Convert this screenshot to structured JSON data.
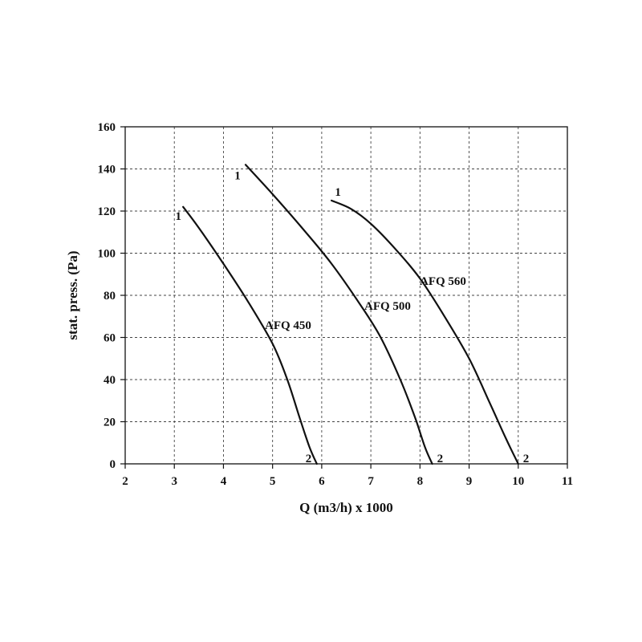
{
  "chart_data": {
    "type": "line",
    "title": "",
    "xlabel": "Q (m3/h) x 1000",
    "ylabel": "stat. press. (Pa)",
    "xlim": [
      2,
      11
    ],
    "ylim": [
      0,
      160
    ],
    "xticks": [
      "2",
      "3",
      "4",
      "5",
      "6",
      "7",
      "8",
      "9",
      "10",
      "11"
    ],
    "yticks": [
      "0",
      "20",
      "40",
      "60",
      "80",
      "100",
      "120",
      "140",
      "160"
    ],
    "grid": true,
    "series": [
      {
        "name": "AFQ 450",
        "start_label": "1",
        "end_label": "2",
        "points": [
          [
            3.18,
            122
          ],
          [
            3.5,
            112
          ],
          [
            4.0,
            95
          ],
          [
            4.5,
            77
          ],
          [
            5.0,
            57
          ],
          [
            5.3,
            40
          ],
          [
            5.55,
            22
          ],
          [
            5.75,
            8
          ],
          [
            5.9,
            0
          ]
        ]
      },
      {
        "name": "AFQ 500",
        "start_label": "1",
        "end_label": "2",
        "points": [
          [
            4.45,
            142
          ],
          [
            5.0,
            128
          ],
          [
            5.6,
            112
          ],
          [
            6.2,
            95
          ],
          [
            6.8,
            75
          ],
          [
            7.2,
            60
          ],
          [
            7.6,
            40
          ],
          [
            7.9,
            22
          ],
          [
            8.1,
            8
          ],
          [
            8.25,
            0
          ]
        ]
      },
      {
        "name": "AFQ 560",
        "start_label": "1",
        "end_label": "2",
        "points": [
          [
            6.2,
            125
          ],
          [
            6.6,
            121
          ],
          [
            7.0,
            114
          ],
          [
            7.5,
            102
          ],
          [
            8.0,
            88
          ],
          [
            8.5,
            70
          ],
          [
            9.0,
            50
          ],
          [
            9.4,
            30
          ],
          [
            9.75,
            12
          ],
          [
            10.0,
            0
          ]
        ]
      }
    ]
  }
}
